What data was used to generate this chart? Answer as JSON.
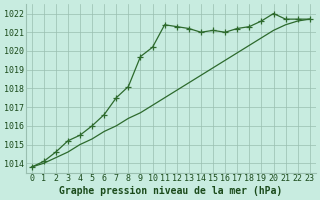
{
  "series1_x": [
    0,
    1,
    2,
    3,
    4,
    5,
    6,
    7,
    8,
    9,
    10,
    11,
    12,
    13,
    14,
    15,
    16,
    17,
    18,
    19,
    20,
    21,
    22,
    23
  ],
  "series1_y": [
    1013.8,
    1014.1,
    1014.6,
    1015.2,
    1015.5,
    1016.0,
    1016.6,
    1017.5,
    1018.1,
    1019.7,
    1020.2,
    1021.4,
    1021.3,
    1021.2,
    1021.0,
    1021.1,
    1021.0,
    1021.2,
    1021.3,
    1021.6,
    1022.0,
    1021.7,
    1021.7,
    1021.7
  ],
  "series2_x": [
    0,
    1,
    2,
    3,
    4,
    5,
    6,
    7,
    8,
    9,
    10,
    11,
    12,
    13,
    14,
    15,
    16,
    17,
    18,
    19,
    20,
    21,
    22,
    23
  ],
  "series2_y": [
    1013.8,
    1014.0,
    1014.3,
    1014.6,
    1015.0,
    1015.3,
    1015.7,
    1016.0,
    1016.4,
    1016.7,
    1017.1,
    1017.5,
    1017.9,
    1018.3,
    1018.7,
    1019.1,
    1019.5,
    1019.9,
    1020.3,
    1020.7,
    1021.1,
    1021.4,
    1021.6,
    1021.7
  ],
  "line_color": "#2d6a2d",
  "marker_color": "#2d6a2d",
  "bg_color": "#c8ece0",
  "grid_color": "#9abfb0",
  "text_color": "#1a4a1a",
  "ylim_min": 1013.5,
  "ylim_max": 1022.5,
  "xlim_min": -0.5,
  "xlim_max": 23.5,
  "ylabel_ticks": [
    1014,
    1015,
    1016,
    1017,
    1018,
    1019,
    1020,
    1021,
    1022
  ],
  "xlabel": "Graphe pression niveau de la mer (hPa)",
  "xlabel_fontsize": 7,
  "tick_fontsize": 6
}
